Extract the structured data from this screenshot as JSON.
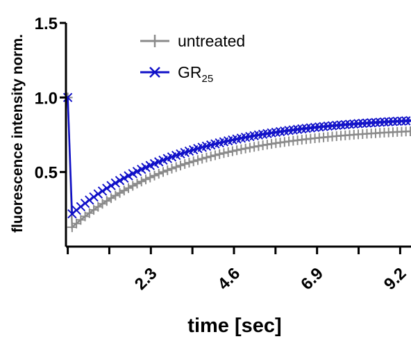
{
  "chart_data": {
    "type": "line",
    "xlabel": "time [sec]",
    "ylabel": "fluorescence intensity norm.",
    "xlim": [
      -0.05,
      9.5
    ],
    "ylim": [
      0,
      1.5
    ],
    "yticks": [
      {
        "value": 0.5,
        "label": "0.5"
      },
      {
        "value": 1.0,
        "label": "1.0"
      },
      {
        "value": 1.5,
        "label": "1.5"
      }
    ],
    "xticks": [
      {
        "value": 2.3,
        "label": "2.3"
      },
      {
        "value": 4.6,
        "label": "4.6"
      },
      {
        "value": 6.9,
        "label": "6.9"
      },
      {
        "value": 9.2,
        "label": "9.2"
      }
    ],
    "xticks_minor": [
      0,
      1.15,
      3.45,
      5.75,
      8.05
    ],
    "grid": false,
    "legend": "top-left",
    "series": [
      {
        "name": "untreated",
        "legend_label": "untreated",
        "marker": "plus",
        "color": "#8a8a8a",
        "prebleach": 1.0,
        "min": 0.13,
        "plateau": 0.81,
        "tau": 3.2
      },
      {
        "name": "GR25",
        "legend_label_main": "GR",
        "legend_label_sub": "25",
        "marker": "cross",
        "color": "#1010c8",
        "prebleach": 1.0,
        "min": 0.22,
        "plateau": 0.88,
        "tau": 3.2
      }
    ],
    "sample_step": 0.12,
    "bleach_time": 0.12
  }
}
